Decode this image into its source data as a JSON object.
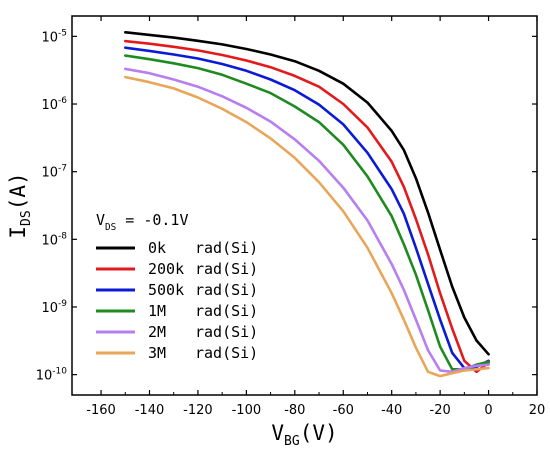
{
  "chart_data": {
    "type": "line",
    "x_scale": "linear",
    "y_scale": "log",
    "xlim": [
      -172,
      20
    ],
    "ylim": [
      5e-11,
      2e-05
    ],
    "x_ticks": [
      -160,
      -140,
      -120,
      -100,
      -80,
      -60,
      -40,
      -20,
      0,
      20
    ],
    "x_tick_labels": [
      "-160",
      "-140",
      "-120",
      "-100",
      "-80",
      "-60",
      "-40",
      "-20",
      "0",
      "20"
    ],
    "y_ticks": [
      1e-10,
      1e-09,
      1e-08,
      1e-07,
      1e-06,
      1e-05
    ],
    "y_tick_mantissa": "10",
    "y_tick_exponents": [
      "-10",
      "-9",
      "-8",
      "-7",
      "-6",
      "-5"
    ],
    "xlabel": {
      "main": "V",
      "sub": "BG",
      "rest": "(V)"
    },
    "ylabel": {
      "main": "I",
      "sub": "DS",
      "rest": "(A)"
    },
    "annotation": {
      "main": "V",
      "sub": "DS",
      "rest": " = -0.1V"
    },
    "grid": false,
    "legend_position": "bottom-left",
    "series": [
      {
        "name": "0k",
        "unit": "rad(Si)",
        "color": "#000000",
        "x": [
          -150,
          -140,
          -130,
          -120,
          -110,
          -100,
          -90,
          -80,
          -70,
          -60,
          -50,
          -40,
          -35,
          -30,
          -25,
          -20,
          -15,
          -10,
          -5,
          0
        ],
        "y": [
          1.15e-05,
          1.05e-05,
          9.6e-06,
          8.6e-06,
          7.6e-06,
          6.5e-06,
          5.4e-06,
          4.3e-06,
          3.1e-06,
          2e-06,
          1.05e-06,
          4e-07,
          2.1e-07,
          8e-08,
          2.5e-08,
          7e-09,
          2e-09,
          7e-10,
          3.2e-10,
          2e-10
        ]
      },
      {
        "name": "200k",
        "unit": "rad(Si)",
        "color": "#e31a1c",
        "x": [
          -150,
          -140,
          -130,
          -120,
          -110,
          -100,
          -90,
          -80,
          -70,
          -60,
          -50,
          -40,
          -35,
          -30,
          -25,
          -20,
          -15,
          -10,
          -5,
          0
        ],
        "y": [
          8.5e-06,
          7.8e-06,
          7e-06,
          6.2e-06,
          5.3e-06,
          4.4e-06,
          3.5e-06,
          2.6e-06,
          1.8e-06,
          1e-06,
          4.5e-07,
          1.4e-07,
          6e-08,
          2e-08,
          6e-09,
          1.6e-09,
          4.8e-10,
          1.6e-10,
          1.1e-10,
          1.5e-10
        ]
      },
      {
        "name": "500k",
        "unit": "rad(Si)",
        "color": "#0a1ad6",
        "x": [
          -150,
          -140,
          -130,
          -120,
          -110,
          -100,
          -90,
          -80,
          -70,
          -60,
          -50,
          -40,
          -35,
          -30,
          -25,
          -20,
          -15,
          -10,
          -5,
          0
        ],
        "y": [
          6.8e-06,
          6.1e-06,
          5.4e-06,
          4.7e-06,
          3.9e-06,
          3.1e-06,
          2.3e-06,
          1.6e-06,
          9.8e-07,
          5e-07,
          1.9e-07,
          5.5e-08,
          2.4e-08,
          7.5e-09,
          2.2e-09,
          6.5e-10,
          2.1e-10,
          1.25e-10,
          1.3e-10,
          1.6e-10
        ]
      },
      {
        "name": "1M",
        "unit": "rad(Si)",
        "color": "#1f8a1f",
        "x": [
          -150,
          -140,
          -130,
          -120,
          -110,
          -100,
          -90,
          -80,
          -70,
          -60,
          -50,
          -40,
          -35,
          -30,
          -25,
          -20,
          -15,
          -10,
          -5,
          0
        ],
        "y": [
          5.2e-06,
          4.6e-06,
          4e-06,
          3.4e-06,
          2.7e-06,
          2e-06,
          1.45e-06,
          9.2e-07,
          5.4e-07,
          2.5e-07,
          8.5e-08,
          2.2e-08,
          8.5e-09,
          3e-09,
          9e-10,
          2.6e-10,
          1.2e-10,
          1.2e-10,
          1.4e-10,
          1.55e-10
        ]
      },
      {
        "name": "2M",
        "unit": "rad(Si)",
        "color": "#b77ef0",
        "x": [
          -150,
          -140,
          -130,
          -120,
          -110,
          -100,
          -90,
          -80,
          -70,
          -60,
          -50,
          -40,
          -35,
          -30,
          -25,
          -20,
          -15,
          -10,
          -5,
          0
        ],
        "y": [
          3.3e-06,
          2.85e-06,
          2.3e-06,
          1.8e-06,
          1.3e-06,
          8.8e-07,
          5.5e-07,
          3e-07,
          1.45e-07,
          5.8e-08,
          1.9e-08,
          4.3e-09,
          1.8e-09,
          6.5e-10,
          2.3e-10,
          1.15e-10,
          1.1e-10,
          1.25e-10,
          1.35e-10,
          1.4e-10
        ]
      },
      {
        "name": "3M",
        "unit": "rad(Si)",
        "color": "#e8a65a",
        "x": [
          -150,
          -140,
          -130,
          -120,
          -110,
          -100,
          -90,
          -80,
          -70,
          -60,
          -50,
          -40,
          -35,
          -30,
          -25,
          -20,
          -15,
          -10,
          -5,
          0
        ],
        "y": [
          2.5e-06,
          2.1e-06,
          1.7e-06,
          1.25e-06,
          8.5e-07,
          5.4e-07,
          3.1e-07,
          1.6e-07,
          7e-08,
          2.6e-08,
          7.5e-09,
          1.6e-09,
          6.5e-10,
          2.5e-10,
          1.1e-10,
          9.5e-11,
          1.05e-10,
          1.15e-10,
          1.2e-10,
          1.25e-10
        ]
      }
    ]
  }
}
